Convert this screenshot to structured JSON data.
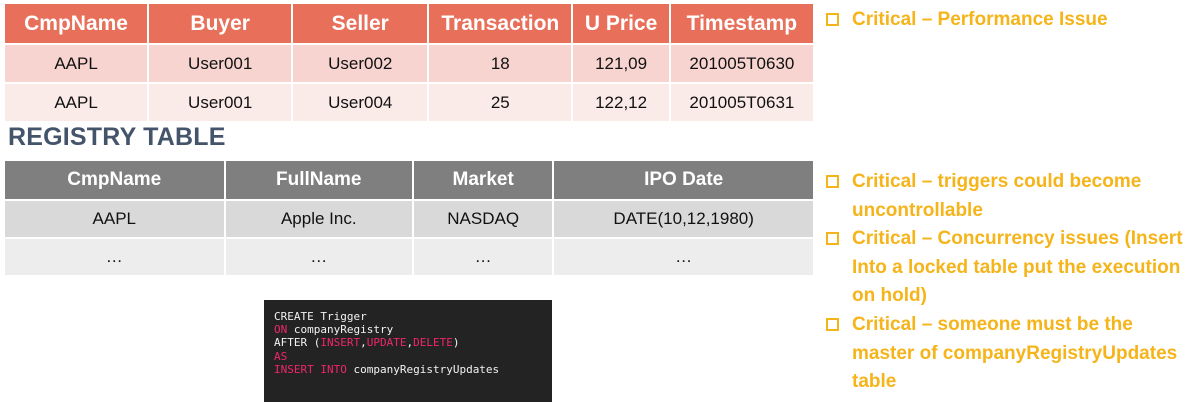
{
  "transactions": {
    "headers": [
      "CmpName",
      "Buyer",
      "Seller",
      "Transaction",
      "U Price",
      "Timestamp"
    ],
    "rows": [
      [
        "AAPL",
        "User001",
        "User002",
        "18",
        "121,09",
        "201005T0630"
      ],
      [
        "AAPL",
        "User001",
        "User004",
        "25",
        "122,12",
        "201005T0631"
      ]
    ]
  },
  "registry": {
    "heading": "REGISTRY TABLE",
    "headers": [
      "CmpName",
      "FullName",
      "Market",
      "IPO Date"
    ],
    "rows": [
      [
        "AAPL",
        "Apple Inc.",
        "NASDAQ",
        "DATE(10,12,1980)"
      ],
      [
        "…",
        "…",
        "…",
        "…"
      ]
    ]
  },
  "code": {
    "line1": "CREATE Trigger",
    "line2_kw": "ON",
    "line2_rest": " companyRegistry",
    "line3_pre": "AFTER (",
    "line3_kw1": "INSERT",
    "line3_sep1": ",",
    "line3_kw2": "UPDATE",
    "line3_sep2": ",",
    "line3_kw3": "DELETE",
    "line3_post": ")",
    "line4_kw": "AS",
    "line5_kw": "INSERT INTO",
    "line5_rest": " companyRegistryUpdates"
  },
  "bullets_top": [
    "Critical – Performance Issue"
  ],
  "bullets_bottom": [
    "Critical – triggers could become uncontrollable",
    "Critical – Concurrency issues (Insert Into a locked table put the execution on hold)",
    "Critical – someone must be the master of companyRegistryUpdates table"
  ],
  "colors": {
    "tx_header": "#e8705b",
    "reg_header": "#7f7f7f",
    "bullet_accent": "#f5b41a",
    "heading": "#44546a",
    "code_bg": "#232323",
    "code_keyword": "#f0266c"
  }
}
